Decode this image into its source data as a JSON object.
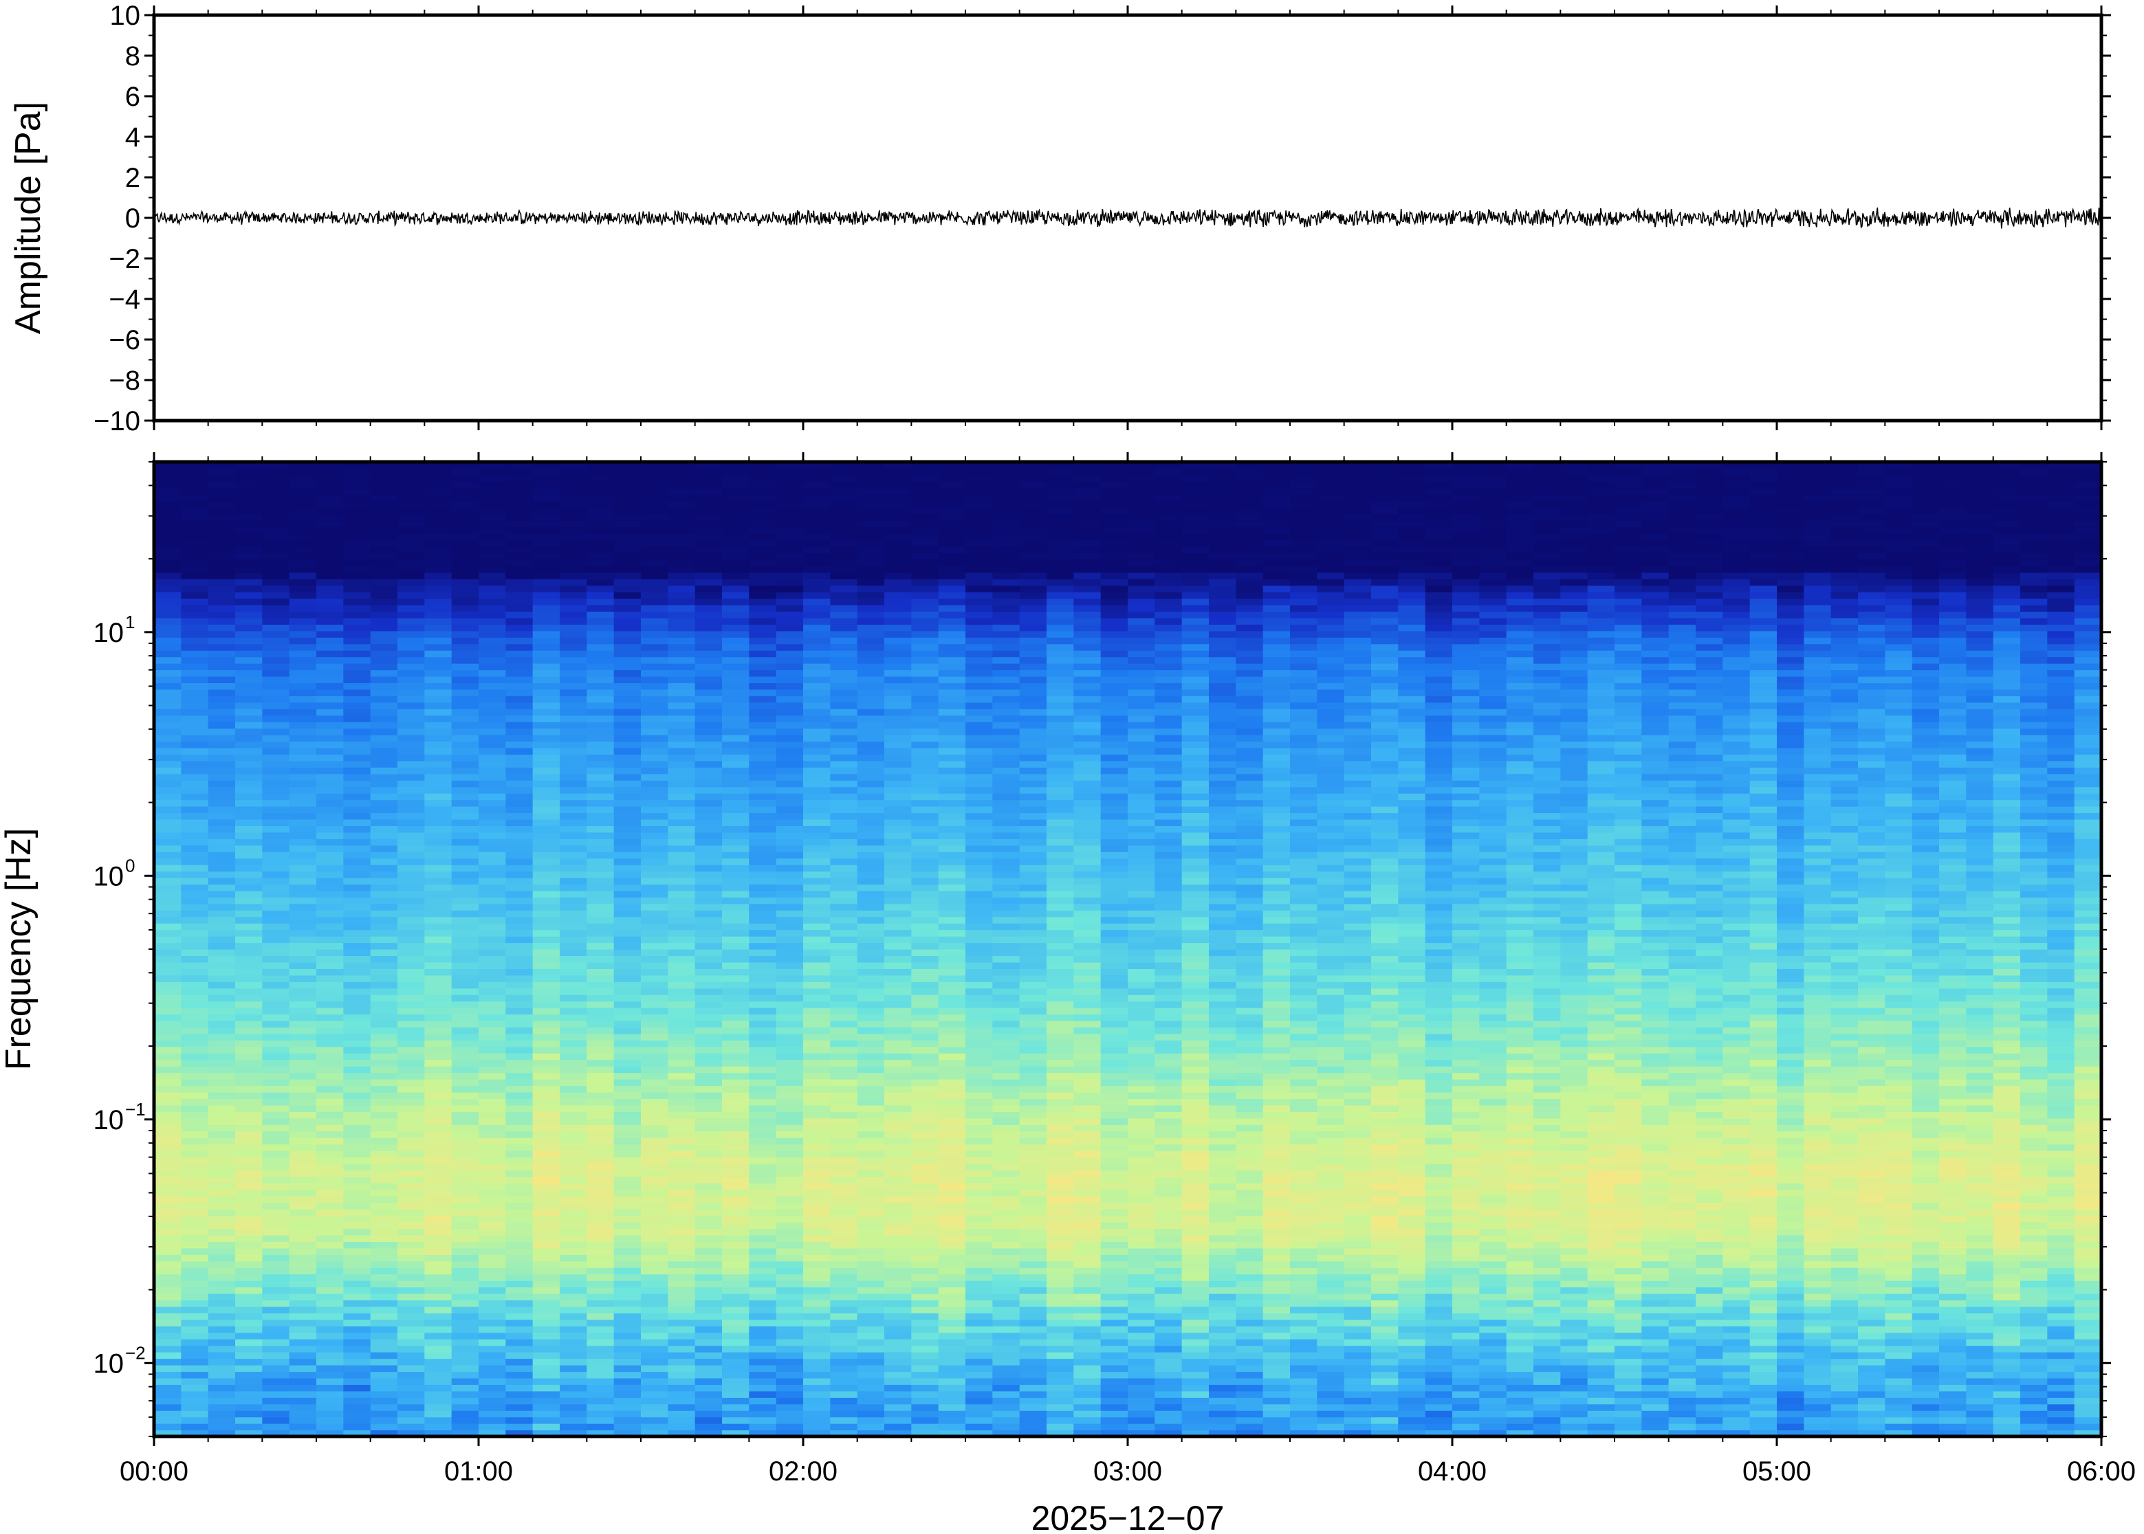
{
  "chart_data": [
    {
      "type": "line",
      "panel": "waveform",
      "ylabel": "Amplitude [Pa]",
      "ylim": [
        -10,
        10
      ],
      "yticks": [
        10,
        8,
        6,
        4,
        2,
        0,
        -2,
        -4,
        -6,
        -8,
        -10
      ],
      "ytick_labels": [
        "10",
        "8",
        "6",
        "4",
        "2",
        "0",
        "−2",
        "−4",
        "−6",
        "−8",
        "−10"
      ],
      "x_range": [
        "00:00",
        "06:00"
      ],
      "series_summary": {
        "mean": 0,
        "noise_amplitude": 0.25,
        "end_amplitude": 0.4
      },
      "line_color": "#000000",
      "grid": false
    },
    {
      "type": "heatmap",
      "panel": "spectrogram",
      "ylabel": "Frequency [Hz]",
      "yscale": "log",
      "ylim": [
        0.005,
        50
      ],
      "yticks": [
        {
          "value": 10,
          "base": "10",
          "exp": "1"
        },
        {
          "value": 1,
          "base": "10",
          "exp": "0"
        },
        {
          "value": 0.1,
          "base": "10",
          "exp": "−1"
        },
        {
          "value": 0.01,
          "base": "10",
          "exp": "−2"
        }
      ],
      "xlabel": "2025−12−07",
      "xticks": [
        "00:00",
        "01:00",
        "02:00",
        "03:00",
        "04:00",
        "05:00",
        "06:00"
      ],
      "x_range_hours": [
        0,
        6
      ],
      "colormap": [
        "#0a0a70",
        "#1530c8",
        "#1e7bf0",
        "#3cb4f5",
        "#6ee6dc",
        "#c8f596",
        "#fae682",
        "#faa55a"
      ],
      "description_bands": [
        {
          "freq_hz": [
            15,
            50
          ],
          "level": "lowest"
        },
        {
          "freq_hz": [
            3,
            15
          ],
          "level": "low"
        },
        {
          "freq_hz": [
            0.3,
            3
          ],
          "level": "medium"
        },
        {
          "freq_hz": [
            0.03,
            0.3
          ],
          "level": "highest"
        },
        {
          "freq_hz": [
            0.005,
            0.03
          ],
          "level": "medium-low"
        }
      ],
      "grid": false
    }
  ]
}
